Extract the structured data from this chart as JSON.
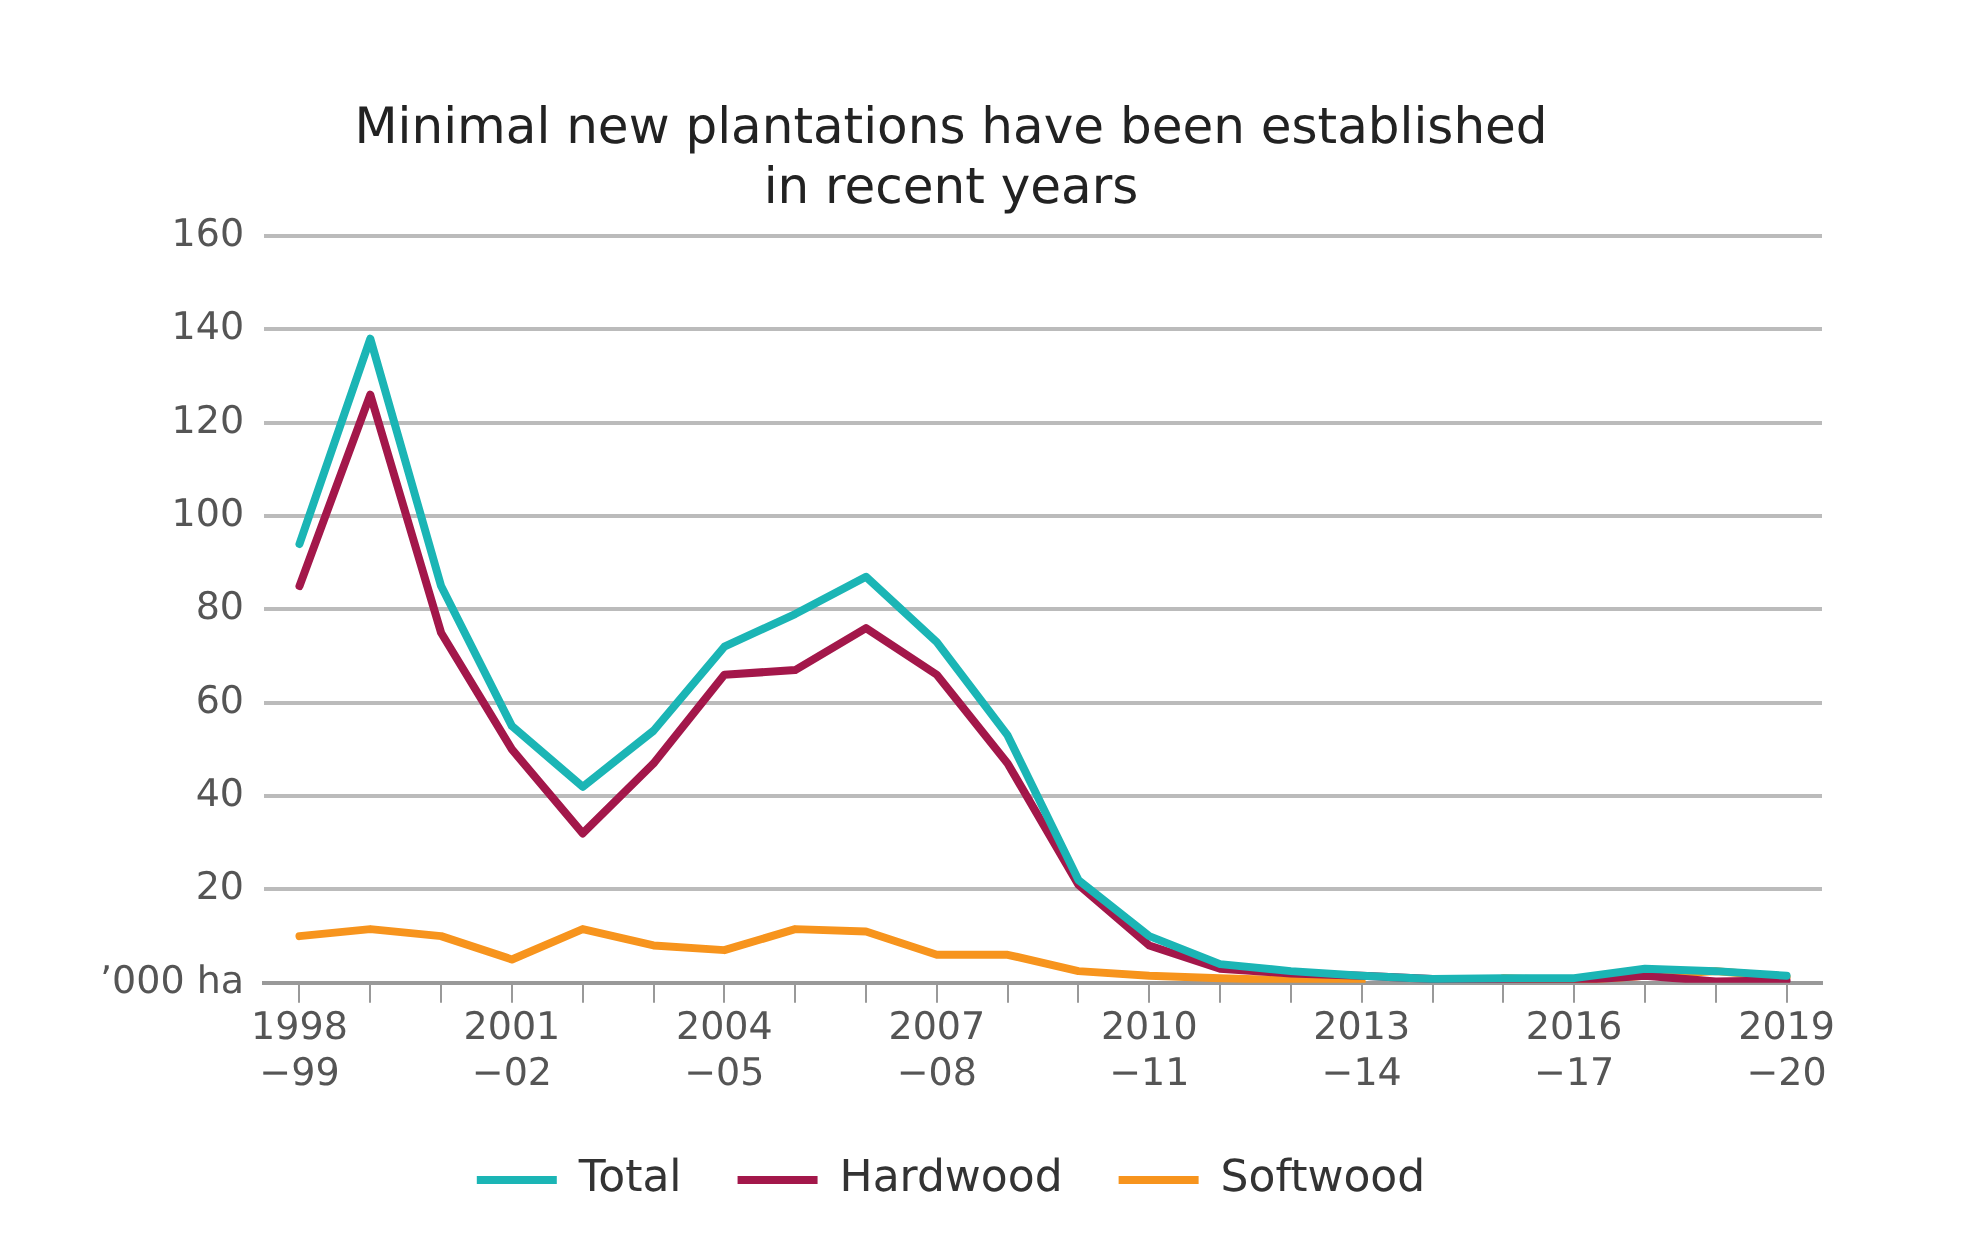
{
  "chart_data": {
    "type": "line",
    "title": [
      "Minimal new plantations have been established",
      "in recent years"
    ],
    "categories": [
      "1998\n−99",
      null,
      null,
      "2001\n−02",
      null,
      null,
      "2004\n−05",
      null,
      null,
      "2007\n−08",
      null,
      null,
      "2010\n−11",
      null,
      null,
      "2013\n−14",
      null,
      null,
      "2016\n−17",
      null,
      null,
      "2019\n−20"
    ],
    "series": [
      {
        "name": "Total",
        "color": "#1bb5b5",
        "values": [
          94,
          138,
          85,
          55,
          42,
          54,
          72,
          79,
          87,
          73,
          53,
          22,
          10,
          4,
          2.5,
          1.5,
          0.8,
          1,
          1,
          3,
          2.5,
          1.5
        ]
      },
      {
        "name": "Hardwood",
        "color": "#a3174a",
        "values": [
          85,
          126,
          75,
          50,
          32,
          47,
          66,
          67,
          76,
          66,
          47,
          21,
          8,
          3,
          2,
          1.5,
          0.8,
          0.3,
          0.5,
          1.5,
          0.3,
          0.5
        ]
      },
      {
        "name": "Softwood",
        "color": "#f7941d",
        "values": [
          10,
          11.5,
          10,
          5,
          11.5,
          8,
          7,
          11.5,
          11,
          6,
          6,
          2.5,
          1.5,
          1,
          0.5,
          0.3,
          null,
          1,
          0.5,
          1.5,
          2.5,
          1.2
        ]
      }
    ],
    "ylim": [
      0,
      160
    ],
    "yticks": [
      {
        "value": 0,
        "label": "’000 ha"
      },
      20,
      40,
      60,
      80,
      100,
      120,
      140,
      160
    ],
    "grid": "y",
    "legend": "bottom",
    "marker": "none",
    "line_style": "solid"
  }
}
